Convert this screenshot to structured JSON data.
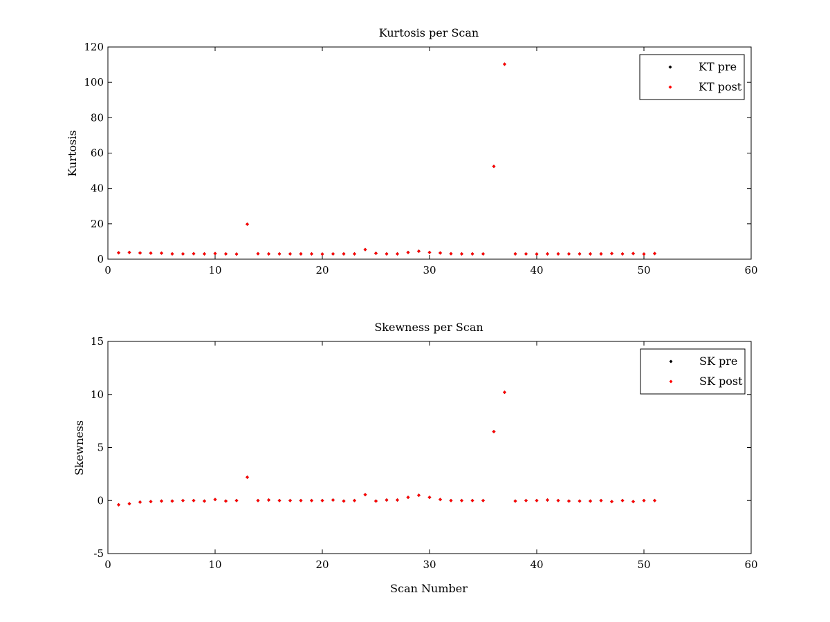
{
  "chart_data": [
    {
      "type": "scatter",
      "title": "Kurtosis per Scan",
      "xlabel": "",
      "ylabel": "Kurtosis",
      "xlim": [
        0,
        60
      ],
      "ylim": [
        0,
        120
      ],
      "xticks": [
        0,
        10,
        20,
        30,
        40,
        50,
        60
      ],
      "yticks": [
        0,
        20,
        40,
        60,
        80,
        100,
        120
      ],
      "grid": false,
      "legend_position": "top-right",
      "x": [
        1,
        2,
        3,
        4,
        5,
        6,
        7,
        8,
        9,
        10,
        11,
        12,
        13,
        14,
        15,
        16,
        17,
        18,
        19,
        20,
        21,
        22,
        23,
        24,
        25,
        26,
        27,
        28,
        29,
        30,
        31,
        32,
        33,
        34,
        35,
        36,
        37,
        38,
        39,
        40,
        41,
        42,
        43,
        44,
        45,
        46,
        47,
        48,
        49,
        50,
        51
      ],
      "series": [
        {
          "name": "KT pre",
          "color": "#000000",
          "values": [
            3.6,
            3.8,
            3.5,
            3.4,
            3.4,
            3.0,
            3.0,
            3.1,
            3.0,
            3.2,
            3.0,
            2.9,
            19.8,
            3.1,
            3.0,
            3.0,
            3.0,
            3.0,
            3.0,
            2.9,
            3.0,
            3.0,
            3.0,
            5.4,
            3.3,
            3.0,
            3.0,
            3.8,
            4.5,
            3.8,
            3.5,
            3.1,
            3.0,
            3.0,
            3.0,
            52.5,
            110.3,
            3.0,
            3.0,
            2.9,
            3.0,
            3.0,
            3.0,
            3.0,
            3.0,
            3.0,
            3.2,
            3.0,
            3.2,
            2.9,
            3.2
          ]
        },
        {
          "name": "KT post",
          "color": "#ff0000",
          "values": [
            3.6,
            3.8,
            3.5,
            3.4,
            3.4,
            3.0,
            3.0,
            3.1,
            3.0,
            3.2,
            3.0,
            2.9,
            19.8,
            3.1,
            3.0,
            3.0,
            3.0,
            3.0,
            3.0,
            2.9,
            3.0,
            3.0,
            3.0,
            5.4,
            3.3,
            3.0,
            3.0,
            3.8,
            4.5,
            3.8,
            3.5,
            3.1,
            3.0,
            3.0,
            3.0,
            52.5,
            110.3,
            3.0,
            3.0,
            2.9,
            3.0,
            3.0,
            3.0,
            3.0,
            3.0,
            3.0,
            3.2,
            3.0,
            3.2,
            2.9,
            3.2
          ]
        }
      ]
    },
    {
      "type": "scatter",
      "title": "Skewness per Scan",
      "xlabel": "Scan Number",
      "ylabel": "Skewness",
      "xlim": [
        0,
        60
      ],
      "ylim": [
        -5,
        15
      ],
      "xticks": [
        0,
        10,
        20,
        30,
        40,
        50,
        60
      ],
      "yticks": [
        -5,
        0,
        5,
        10,
        15
      ],
      "grid": false,
      "legend_position": "top-right",
      "x": [
        1,
        2,
        3,
        4,
        5,
        6,
        7,
        8,
        9,
        10,
        11,
        12,
        13,
        14,
        15,
        16,
        17,
        18,
        19,
        20,
        21,
        22,
        23,
        24,
        25,
        26,
        27,
        28,
        29,
        30,
        31,
        32,
        33,
        34,
        35,
        36,
        37,
        38,
        39,
        40,
        41,
        42,
        43,
        44,
        45,
        46,
        47,
        48,
        49,
        50,
        51
      ],
      "series": [
        {
          "name": "SK pre",
          "color": "#000000",
          "values": [
            -0.4,
            -0.3,
            -0.15,
            -0.1,
            -0.05,
            -0.05,
            0.0,
            0.0,
            -0.05,
            0.1,
            -0.05,
            0.0,
            2.2,
            0.0,
            0.05,
            0.0,
            0.0,
            0.0,
            0.0,
            0.0,
            0.05,
            -0.05,
            0.0,
            0.55,
            -0.05,
            0.05,
            0.05,
            0.3,
            0.5,
            0.3,
            0.1,
            0.0,
            0.0,
            0.0,
            0.0,
            6.5,
            10.2,
            -0.05,
            0.0,
            0.0,
            0.05,
            0.0,
            -0.05,
            -0.05,
            -0.05,
            0.0,
            -0.1,
            0.0,
            -0.1,
            0.0,
            0.0
          ]
        },
        {
          "name": "SK post",
          "color": "#ff0000",
          "values": [
            -0.4,
            -0.3,
            -0.15,
            -0.1,
            -0.05,
            -0.05,
            0.0,
            0.0,
            -0.05,
            0.1,
            -0.05,
            0.0,
            2.2,
            0.0,
            0.05,
            0.0,
            0.0,
            0.0,
            0.0,
            0.0,
            0.05,
            -0.05,
            0.0,
            0.55,
            -0.05,
            0.05,
            0.05,
            0.3,
            0.5,
            0.3,
            0.1,
            0.0,
            0.0,
            0.0,
            0.0,
            6.5,
            10.2,
            -0.05,
            0.0,
            0.0,
            0.05,
            0.0,
            -0.05,
            -0.05,
            -0.05,
            0.0,
            -0.1,
            0.0,
            -0.1,
            0.0,
            0.0
          ]
        }
      ]
    }
  ]
}
